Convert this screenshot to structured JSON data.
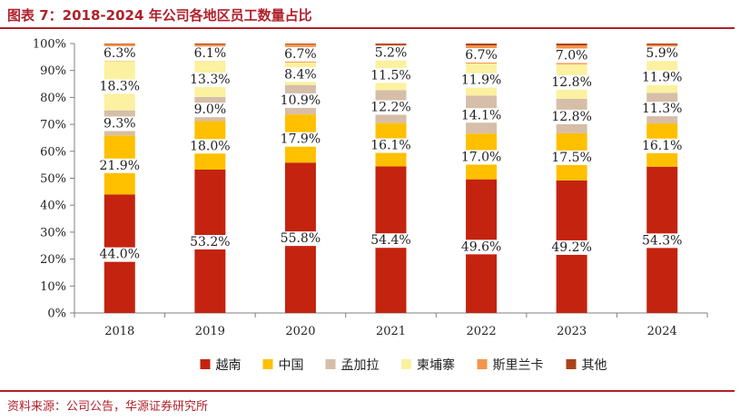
{
  "header": {
    "title": "图表 7：2018-2024 年公司各地区员工数量占比"
  },
  "footer": {
    "source": "资料来源：公司公告，华源证券研究所"
  },
  "colors": {
    "accent": "#b0212b"
  },
  "chart_data": {
    "type": "bar",
    "stacked": true,
    "percent": true,
    "categories": [
      "2018",
      "2019",
      "2020",
      "2021",
      "2022",
      "2023",
      "2024"
    ],
    "y_ticks": [
      "0%",
      "10%",
      "20%",
      "30%",
      "40%",
      "50%",
      "60%",
      "70%",
      "80%",
      "90%",
      "100%"
    ],
    "ylim": [
      0,
      100
    ],
    "legend_position": "bottom",
    "series": [
      {
        "name": "越南",
        "color": "#c4230f",
        "values": [
          44.0,
          53.2,
          55.8,
          54.4,
          49.6,
          49.2,
          54.3
        ],
        "labels": [
          "44.0%",
          "53.2%",
          "55.8%",
          "54.4%",
          "49.6%",
          "49.2%",
          "54.3%"
        ]
      },
      {
        "name": "中国",
        "color": "#ffc000",
        "values": [
          21.9,
          18.0,
          17.9,
          16.1,
          17.0,
          17.5,
          16.1
        ],
        "labels": [
          "21.9%",
          "18.0%",
          "17.9%",
          "16.1%",
          "17.0%",
          "17.5%",
          "16.1%"
        ]
      },
      {
        "name": "孟加拉",
        "color": "#d6bea8",
        "values": [
          9.3,
          9.0,
          10.9,
          12.2,
          14.1,
          12.8,
          11.3
        ],
        "labels": [
          "9.3%",
          "9.0%",
          "10.9%",
          "12.2%",
          "14.1%",
          "12.8%",
          "11.3%"
        ]
      },
      {
        "name": "柬埔寨",
        "color": "#fbf1a0",
        "values": [
          18.3,
          13.3,
          8.4,
          11.5,
          11.9,
          12.8,
          11.9
        ],
        "labels": [
          "18.3%",
          "13.3%",
          "8.4%",
          "11.5%",
          "11.9%",
          "12.8%",
          "11.9%"
        ]
      },
      {
        "name": "斯里兰卡",
        "color": "#f4944a",
        "values": [
          6.3,
          6.1,
          6.7,
          5.2,
          6.7,
          7.0,
          5.9
        ],
        "labels": [
          "6.3%",
          "6.1%",
          "6.7%",
          "5.2%",
          "6.7%",
          "7.0%",
          "5.9%"
        ]
      },
      {
        "name": "其他",
        "color": "#a9421a",
        "values": [
          0.2,
          0.4,
          0.3,
          0.6,
          0.7,
          0.7,
          0.5
        ],
        "labels": []
      }
    ]
  }
}
